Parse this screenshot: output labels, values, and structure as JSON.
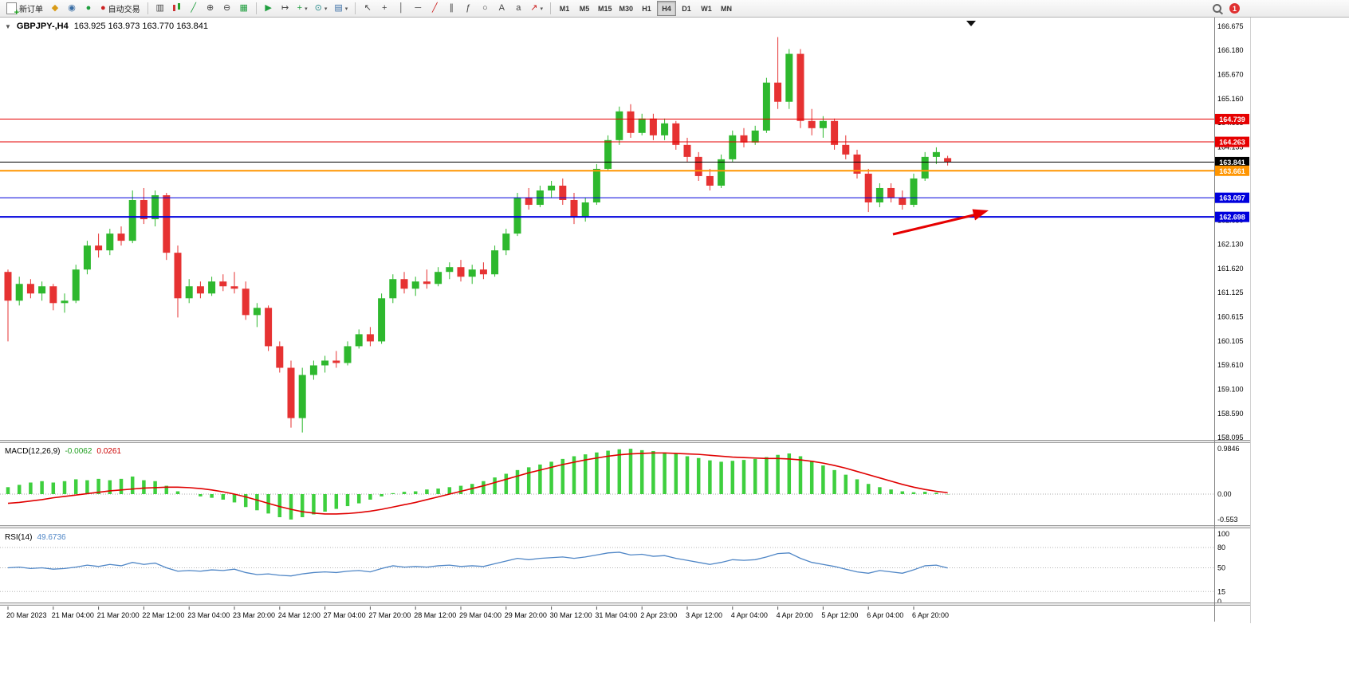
{
  "toolbar": {
    "new_order": "新订单",
    "auto_trading": "自动交易",
    "timeframes": [
      "M1",
      "M5",
      "M15",
      "M30",
      "H1",
      "H4",
      "D1",
      "W1",
      "MN"
    ],
    "active_timeframe": "H4",
    "notification_count": "1"
  },
  "icons": {
    "symbol_dropdown": "▼",
    "caret": "▾",
    "market_watch": "◆",
    "navigator": "◉",
    "terminal": "●",
    "auto_trading": "●",
    "bar_chart": "▥",
    "line_chart": "╱",
    "zoom_in": "⊕",
    "zoom_out": "⊖",
    "tile_windows": "▦",
    "auto_scroll": "▶",
    "chart_shift": "↦",
    "indicators": "+",
    "periods": "⊙",
    "templates": "▤",
    "cursor": "↖",
    "crosshair": "+",
    "vertical_line": "│",
    "horizontal_line": "─",
    "trendline": "╱",
    "channel": "∥",
    "fibonacci": "ƒ",
    "shapes": "○",
    "text": "A",
    "text_label": "a",
    "arrows": "↗"
  },
  "chart": {
    "title": "GBPJPY-,H4",
    "ohlc": "163.925 163.973 163.770 163.841"
  },
  "chart_data": {
    "type": "candlestick",
    "symbol": "GBPJPY-",
    "period": "H4",
    "up_color": "#2eb82e",
    "down_color": "#e63232",
    "current_bar": {
      "open": 163.925,
      "high": 163.973,
      "low": 163.77,
      "close": 163.841
    },
    "y_ticks": [
      "166.675",
      "166.180",
      "165.670",
      "165.160",
      "164.665",
      "164.155",
      "163.645",
      "163.140",
      "162.630",
      "162.130",
      "161.620",
      "161.125",
      "160.615",
      "160.105",
      "159.610",
      "159.100",
      "158.590",
      "158.095"
    ],
    "x_ticks": [
      "20 Mar 2023",
      "21 Mar 04:00",
      "21 Mar 20:00",
      "22 Mar 12:00",
      "23 Mar 04:00",
      "23 Mar 20:00",
      "24 Mar 12:00",
      "27 Mar 04:00",
      "27 Mar 20:00",
      "28 Mar 12:00",
      "29 Mar 04:00",
      "29 Mar 20:00",
      "30 Mar 12:00",
      "31 Mar 04:00",
      "2 Apr 23:00",
      "3 Apr 12:00",
      "4 Apr 04:00",
      "4 Apr 20:00",
      "5 Apr 12:00",
      "6 Apr 04:00",
      "6 Apr 20:00"
    ],
    "x_tick_step": 4,
    "levels": [
      {
        "price": 164.739,
        "label": "164.739",
        "color": "#e60000",
        "width": 1
      },
      {
        "price": 164.263,
        "label": "164.263",
        "color": "#e60000",
        "width": 1
      },
      {
        "price": 163.841,
        "label": "163.841",
        "color": "#000000",
        "width": 1,
        "current": true
      },
      {
        "price": 163.661,
        "label": "163.661",
        "color": "#ff9500",
        "width": 2
      },
      {
        "price": 163.097,
        "label": "163.097",
        "color": "#0000dd",
        "width": 1
      },
      {
        "price": 162.698,
        "label": "162.698",
        "color": "#0000dd",
        "width": 2
      }
    ],
    "candles": [
      [
        161.55,
        161.6,
        160.1,
        160.95
      ],
      [
        160.95,
        161.45,
        160.85,
        161.3
      ],
      [
        161.3,
        161.4,
        161.0,
        161.1
      ],
      [
        161.1,
        161.35,
        160.95,
        161.25
      ],
      [
        161.25,
        161.3,
        160.75,
        160.9
      ],
      [
        160.9,
        161.1,
        160.7,
        160.95
      ],
      [
        160.95,
        161.7,
        160.9,
        161.6
      ],
      [
        161.6,
        162.2,
        161.5,
        162.1
      ],
      [
        162.1,
        162.35,
        161.85,
        162.0
      ],
      [
        162.0,
        162.45,
        161.9,
        162.35
      ],
      [
        162.35,
        162.5,
        162.1,
        162.2
      ],
      [
        162.2,
        163.25,
        162.15,
        163.05
      ],
      [
        163.05,
        163.3,
        162.55,
        162.65
      ],
      [
        162.65,
        163.25,
        162.5,
        163.15
      ],
      [
        163.15,
        163.2,
        161.8,
        161.95
      ],
      [
        161.95,
        162.1,
        160.6,
        161.0
      ],
      [
        161.0,
        161.4,
        160.9,
        161.25
      ],
      [
        161.25,
        161.35,
        161.0,
        161.1
      ],
      [
        161.1,
        161.45,
        161.05,
        161.35
      ],
      [
        161.35,
        161.5,
        161.15,
        161.25
      ],
      [
        161.25,
        161.55,
        161.1,
        161.2
      ],
      [
        161.2,
        161.35,
        160.55,
        160.65
      ],
      [
        160.65,
        160.9,
        160.4,
        160.8
      ],
      [
        160.8,
        160.85,
        159.9,
        160.0
      ],
      [
        160.0,
        160.1,
        159.45,
        159.55
      ],
      [
        159.55,
        159.7,
        158.3,
        158.5
      ],
      [
        158.5,
        159.55,
        158.2,
        159.4
      ],
      [
        159.4,
        159.7,
        159.3,
        159.6
      ],
      [
        159.6,
        159.8,
        159.45,
        159.7
      ],
      [
        159.7,
        159.9,
        159.55,
        159.65
      ],
      [
        159.65,
        160.1,
        159.6,
        160.0
      ],
      [
        160.0,
        160.35,
        159.95,
        160.25
      ],
      [
        160.25,
        160.4,
        160.0,
        160.1
      ],
      [
        160.1,
        161.1,
        160.05,
        161.0
      ],
      [
        161.0,
        161.5,
        160.9,
        161.4
      ],
      [
        161.4,
        161.55,
        161.1,
        161.2
      ],
      [
        161.2,
        161.45,
        161.05,
        161.35
      ],
      [
        161.35,
        161.6,
        161.2,
        161.3
      ],
      [
        161.3,
        161.65,
        161.25,
        161.55
      ],
      [
        161.55,
        161.75,
        161.4,
        161.65
      ],
      [
        161.65,
        161.8,
        161.35,
        161.45
      ],
      [
        161.45,
        161.7,
        161.3,
        161.6
      ],
      [
        161.6,
        161.75,
        161.4,
        161.5
      ],
      [
        161.5,
        162.1,
        161.45,
        162.0
      ],
      [
        162.0,
        162.45,
        161.9,
        162.35
      ],
      [
        162.35,
        163.2,
        162.3,
        163.1
      ],
      [
        163.1,
        163.3,
        162.85,
        162.95
      ],
      [
        162.95,
        163.35,
        162.9,
        163.25
      ],
      [
        163.25,
        163.45,
        163.1,
        163.35
      ],
      [
        163.35,
        163.5,
        162.95,
        163.05
      ],
      [
        163.05,
        163.2,
        162.55,
        162.7
      ],
      [
        162.7,
        163.1,
        162.6,
        163.0
      ],
      [
        163.0,
        163.8,
        162.95,
        163.7
      ],
      [
        163.7,
        164.4,
        163.65,
        164.3
      ],
      [
        164.3,
        165.0,
        164.2,
        164.9
      ],
      [
        164.9,
        165.05,
        164.35,
        164.45
      ],
      [
        164.45,
        164.85,
        164.4,
        164.75
      ],
      [
        164.75,
        164.85,
        164.3,
        164.4
      ],
      [
        164.4,
        164.75,
        164.3,
        164.65
      ],
      [
        164.65,
        164.7,
        164.1,
        164.2
      ],
      [
        164.2,
        164.35,
        163.85,
        163.95
      ],
      [
        163.95,
        164.05,
        163.45,
        163.55
      ],
      [
        163.55,
        163.7,
        163.25,
        163.35
      ],
      [
        163.35,
        164.0,
        163.3,
        163.9
      ],
      [
        163.9,
        164.5,
        163.85,
        164.4
      ],
      [
        164.4,
        164.55,
        164.15,
        164.25
      ],
      [
        164.25,
        164.6,
        164.2,
        164.5
      ],
      [
        164.5,
        165.6,
        164.45,
        165.5
      ],
      [
        165.5,
        166.45,
        164.95,
        165.1
      ],
      [
        165.1,
        166.2,
        164.95,
        166.1
      ],
      [
        166.1,
        166.2,
        164.55,
        164.7
      ],
      [
        164.7,
        164.95,
        164.4,
        164.55
      ],
      [
        164.55,
        164.8,
        164.35,
        164.7
      ],
      [
        164.7,
        164.75,
        164.1,
        164.2
      ],
      [
        164.2,
        164.4,
        163.9,
        164.0
      ],
      [
        164.0,
        164.1,
        163.5,
        163.6
      ],
      [
        163.6,
        163.7,
        162.8,
        163.0
      ],
      [
        163.0,
        163.4,
        162.9,
        163.3
      ],
      [
        163.3,
        163.4,
        163.0,
        163.1
      ],
      [
        163.1,
        163.25,
        162.85,
        162.95
      ],
      [
        162.95,
        163.6,
        162.9,
        163.5
      ],
      [
        163.5,
        164.05,
        163.45,
        163.95
      ],
      [
        163.95,
        164.15,
        163.8,
        164.05
      ],
      [
        163.925,
        163.973,
        163.77,
        163.841
      ]
    ],
    "macd": {
      "name": "MACD(12,26,9)",
      "main": "-0.0062",
      "signal": "0.0261",
      "axis": [
        "0.9846",
        "0.00",
        "-0.553"
      ],
      "hist_color": "#3ecf3e",
      "signal_color": "#e00000",
      "histogram": [
        0.15,
        0.2,
        0.25,
        0.28,
        0.25,
        0.28,
        0.32,
        0.3,
        0.33,
        0.3,
        0.33,
        0.38,
        0.3,
        0.28,
        0.18,
        0.06,
        0.0,
        -0.05,
        -0.08,
        -0.12,
        -0.18,
        -0.28,
        -0.35,
        -0.42,
        -0.5,
        -0.55,
        -0.5,
        -0.44,
        -0.38,
        -0.32,
        -0.26,
        -0.2,
        -0.12,
        -0.05,
        0.02,
        0.05,
        0.06,
        0.1,
        0.12,
        0.15,
        0.18,
        0.22,
        0.28,
        0.36,
        0.44,
        0.52,
        0.58,
        0.64,
        0.7,
        0.76,
        0.82,
        0.86,
        0.9,
        0.94,
        0.97,
        0.98,
        0.95,
        0.93,
        0.9,
        0.87,
        0.82,
        0.78,
        0.73,
        0.7,
        0.72,
        0.74,
        0.76,
        0.8,
        0.85,
        0.88,
        0.82,
        0.72,
        0.62,
        0.52,
        0.42,
        0.32,
        0.22,
        0.15,
        0.1,
        0.06,
        0.04,
        0.05,
        0.03,
        -0.0062
      ],
      "signal_line": [
        -0.2,
        -0.18,
        -0.15,
        -0.12,
        -0.08,
        -0.05,
        -0.02,
        0.01,
        0.04,
        0.07,
        0.09,
        0.11,
        0.13,
        0.14,
        0.15,
        0.15,
        0.14,
        0.12,
        0.09,
        0.05,
        0.0,
        -0.06,
        -0.13,
        -0.2,
        -0.27,
        -0.33,
        -0.38,
        -0.41,
        -0.43,
        -0.43,
        -0.42,
        -0.4,
        -0.37,
        -0.33,
        -0.28,
        -0.23,
        -0.18,
        -0.12,
        -0.06,
        0.0,
        0.06,
        0.12,
        0.18,
        0.25,
        0.32,
        0.39,
        0.46,
        0.52,
        0.58,
        0.64,
        0.69,
        0.74,
        0.78,
        0.82,
        0.85,
        0.87,
        0.88,
        0.89,
        0.89,
        0.88,
        0.87,
        0.86,
        0.84,
        0.82,
        0.8,
        0.79,
        0.78,
        0.77,
        0.77,
        0.76,
        0.74,
        0.71,
        0.67,
        0.62,
        0.56,
        0.49,
        0.42,
        0.35,
        0.28,
        0.21,
        0.15,
        0.1,
        0.06,
        0.03
      ]
    },
    "rsi": {
      "name": "RSI(14)",
      "value": "49.6736",
      "axis": [
        "100",
        "80",
        "50",
        "15",
        "0"
      ],
      "line_color": "#4f86c6",
      "values": [
        50,
        51,
        49,
        50,
        48,
        49,
        51,
        54,
        52,
        55,
        53,
        58,
        55,
        57,
        50,
        45,
        46,
        45,
        47,
        46,
        48,
        43,
        40,
        41,
        39,
        38,
        41,
        43,
        44,
        43,
        45,
        46,
        44,
        49,
        53,
        51,
        52,
        51,
        53,
        54,
        52,
        53,
        52,
        56,
        60,
        64,
        62,
        64,
        65,
        66,
        64,
        66,
        69,
        72,
        73,
        69,
        70,
        67,
        68,
        64,
        61,
        58,
        55,
        58,
        62,
        61,
        62,
        66,
        71,
        72,
        64,
        58,
        55,
        52,
        48,
        44,
        42,
        46,
        44,
        42,
        47,
        53,
        54,
        49.6736
      ]
    },
    "annotation_arrow": {
      "color": "#e60000",
      "points_to_price": 162.698
    }
  }
}
